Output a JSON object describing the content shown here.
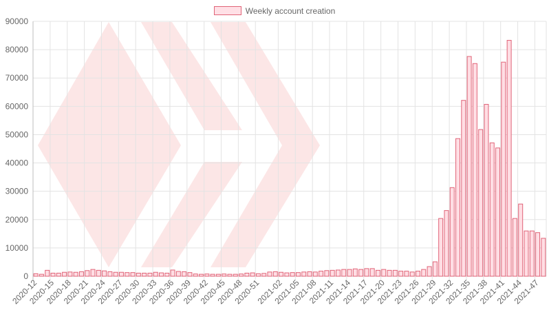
{
  "chart_data": {
    "type": "bar",
    "series": [
      {
        "name": "Weekly account creation",
        "values": [
          900,
          700,
          2100,
          1100,
          1100,
          1400,
          1500,
          1400,
          1600,
          2000,
          2400,
          2100,
          1900,
          1600,
          1400,
          1400,
          1300,
          1300,
          1100,
          1100,
          1100,
          1400,
          1200,
          1100,
          2200,
          1700,
          1600,
          1300,
          800,
          700,
          800,
          700,
          700,
          800,
          700,
          700,
          800,
          1100,
          1200,
          900,
          1000,
          1500,
          1600,
          1400,
          1200,
          1300,
          1300,
          1500,
          1600,
          1500,
          1800,
          2000,
          2100,
          2200,
          2400,
          2400,
          2600,
          2400,
          2700,
          2700,
          2100,
          2400,
          2100,
          2100,
          1800,
          1800,
          1500,
          1800,
          2400,
          3400,
          5100,
          20400,
          23200,
          31300,
          48600,
          62100,
          77600,
          75100,
          51800,
          60700,
          47100,
          45300,
          75600,
          83300,
          20400,
          25500,
          16000,
          16000,
          15400,
          13400
        ],
        "fill": "#ffdee4",
        "stroke": "#e06377"
      }
    ],
    "categories": [
      "2020-12",
      "2020-13",
      "2020-14",
      "2020-15",
      "2020-16",
      "2020-17",
      "2020-18",
      "2020-19",
      "2020-20",
      "2020-21",
      "2020-22",
      "2020-23",
      "2020-24",
      "2020-25",
      "2020-26",
      "2020-27",
      "2020-28",
      "2020-29",
      "2020-30",
      "2020-31",
      "2020-32",
      "2020-33",
      "2020-34",
      "2020-35",
      "2020-36",
      "2020-37",
      "2020-38",
      "2020-39",
      "2020-40",
      "2020-41",
      "2020-42",
      "2020-43",
      "2020-44",
      "2020-45",
      "2020-46",
      "2020-47",
      "2020-48",
      "2020-49",
      "2020-50",
      "2020-51",
      "2020-52",
      "2020-53",
      "2021-01",
      "2021-02",
      "2021-03",
      "2021-04",
      "2021-05",
      "2021-06",
      "2021-07",
      "2021-08",
      "2021-09",
      "2021-10",
      "2021-11",
      "2021-12",
      "2021-13",
      "2021-14",
      "2021-15",
      "2021-16",
      "2021-17",
      "2021-18",
      "2021-19",
      "2021-20",
      "2021-21",
      "2021-22",
      "2021-23",
      "2021-24",
      "2021-25",
      "2021-26",
      "2021-27",
      "2021-28",
      "2021-29",
      "2021-30",
      "2021-31",
      "2021-32",
      "2021-33",
      "2021-34",
      "2021-35",
      "2021-36",
      "2021-37",
      "2021-38",
      "2021-39",
      "2021-40",
      "2021-41",
      "2021-42",
      "2021-43",
      "2021-44",
      "2021-45",
      "2021-46",
      "2021-47",
      "2021-48"
    ],
    "x_tick_labels": [
      "2020-12",
      "2020-15",
      "2020-18",
      "2020-21",
      "2020-24",
      "2020-27",
      "2020-30",
      "2020-33",
      "2020-36",
      "2020-39",
      "2020-42",
      "2020-45",
      "2020-48",
      "2020-51",
      "2021-02",
      "2021-05",
      "2021-08",
      "2021-11",
      "2021-14",
      "2021-17",
      "2021-20",
      "2021-23",
      "2021-26",
      "2021-29",
      "2021-32",
      "2021-35",
      "2021-38",
      "2021-41",
      "2021-44",
      "2021-47"
    ],
    "y_ticks": [
      "0",
      "10000",
      "20000",
      "30000",
      "40000",
      "50000",
      "60000",
      "70000",
      "80000",
      "90000"
    ],
    "ylim": [
      0,
      90000
    ],
    "title": "",
    "xlabel": "",
    "ylabel": "",
    "grid": true,
    "legend_position": "top-center",
    "watermark": "hive-logo"
  }
}
